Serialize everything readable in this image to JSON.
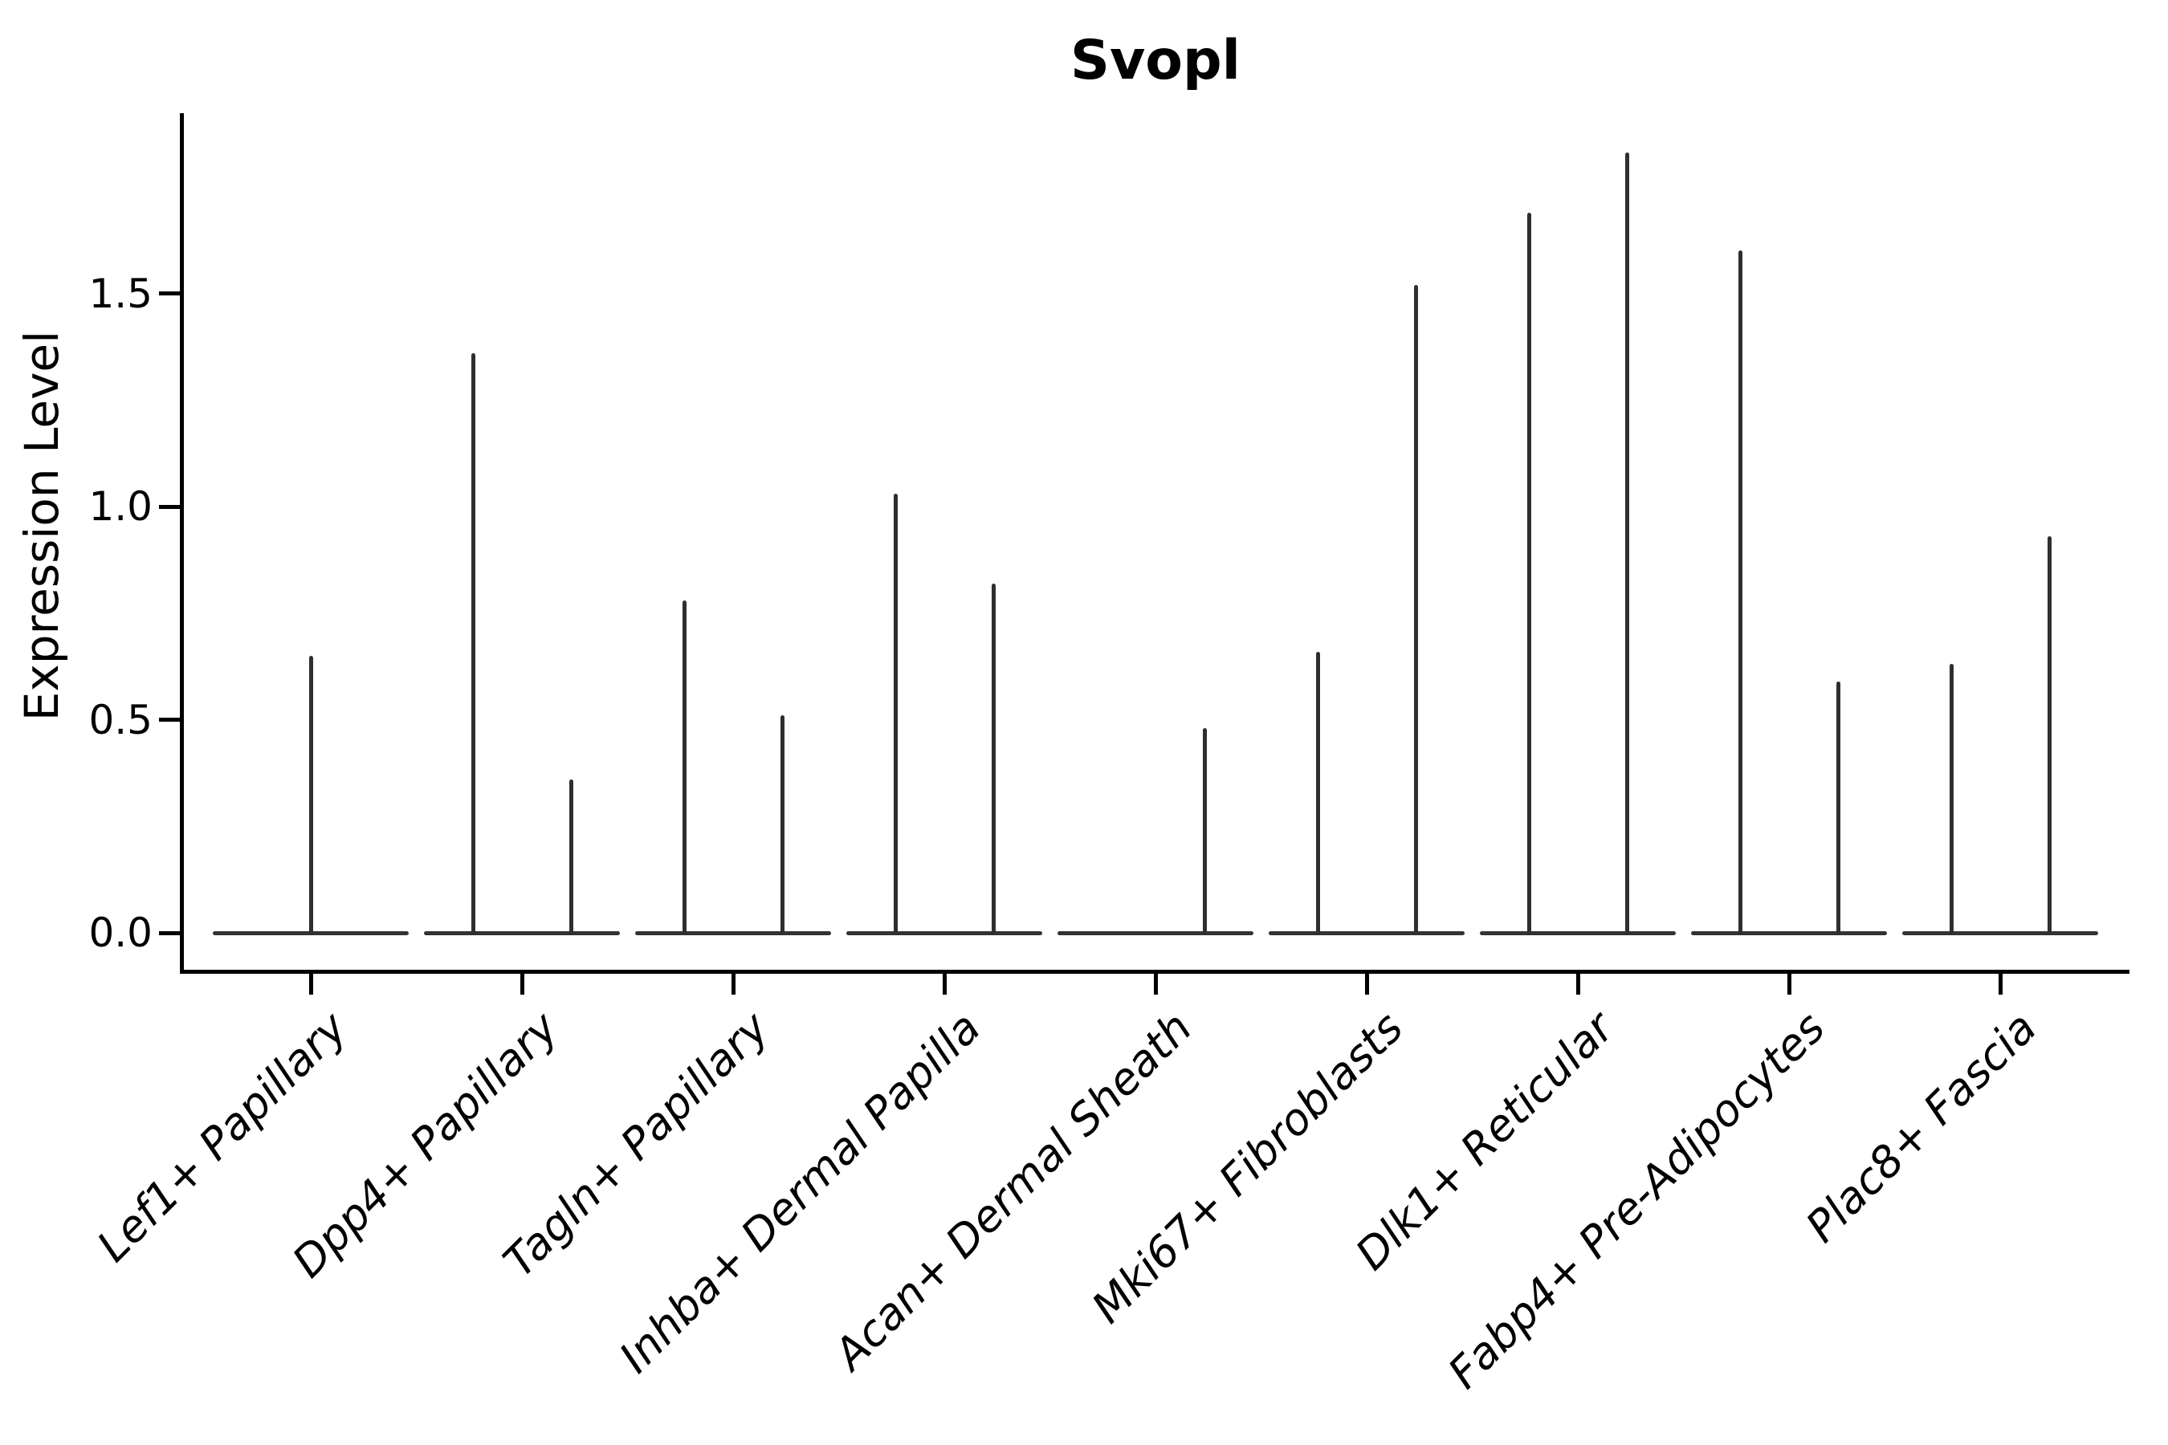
{
  "figure": {
    "title": "Svopl"
  },
  "chart_data": {
    "type": "violin",
    "title": "Svopl",
    "xlabel": "",
    "ylabel": "Expression Level",
    "ylim": [
      0,
      1.92
    ],
    "grid": false,
    "legend_position": "none",
    "yticks": [
      {
        "label": "0.0",
        "value": 0.0
      },
      {
        "label": "0.5",
        "value": 0.5
      },
      {
        "label": "1.0",
        "value": 1.0
      },
      {
        "label": "1.5",
        "value": 1.5
      }
    ],
    "categories": [
      "Lef1+ Papillary",
      "Dpp4+ Papillary",
      "Tagln+ Papillary",
      "Inhba+ Dermal Papilla",
      "Acan+ Dermal Sheath",
      "Mki67+ Fibroblasts",
      "Dlk1+ Reticular",
      "Fabp4+ Pre-Adipocytes",
      "Plac8+ Fascia"
    ],
    "series": [
      {
        "category": "Lef1+ Papillary",
        "violins": [
          {
            "position": "center",
            "max_expression": 0.65
          }
        ]
      },
      {
        "category": "Dpp4+ Papillary",
        "violins": [
          {
            "position": "left",
            "max_expression": 1.36
          },
          {
            "position": "right",
            "max_expression": 0.36
          }
        ]
      },
      {
        "category": "Tagln+ Papillary",
        "violins": [
          {
            "position": "left",
            "max_expression": 0.78
          },
          {
            "position": "right",
            "max_expression": 0.51
          }
        ]
      },
      {
        "category": "Inhba+ Dermal Papilla",
        "violins": [
          {
            "position": "left",
            "max_expression": 1.03
          },
          {
            "position": "right",
            "max_expression": 0.82
          }
        ]
      },
      {
        "category": "Acan+ Dermal Sheath",
        "violins": [
          {
            "position": "right",
            "max_expression": 0.48
          }
        ]
      },
      {
        "category": "Mki67+ Fibroblasts",
        "violins": [
          {
            "position": "left",
            "max_expression": 0.66
          },
          {
            "position": "right",
            "max_expression": 1.52
          }
        ]
      },
      {
        "category": "Dlk1+ Reticular",
        "violins": [
          {
            "position": "left",
            "max_expression": 1.69
          },
          {
            "position": "right",
            "max_expression": 1.83
          }
        ]
      },
      {
        "category": "Fabp4+ Pre-Adipocytes",
        "violins": [
          {
            "position": "left",
            "max_expression": 1.6
          },
          {
            "position": "right",
            "max_expression": 0.59
          }
        ]
      },
      {
        "category": "Plac8+ Fascia",
        "violins": [
          {
            "position": "left",
            "max_expression": 0.63
          },
          {
            "position": "right",
            "max_expression": 0.93
          }
        ]
      }
    ],
    "style": {
      "violin_line_color": "#2f2f2f",
      "spine_color": "#000000",
      "text_color": "#000000",
      "background": "#ffffff"
    }
  }
}
